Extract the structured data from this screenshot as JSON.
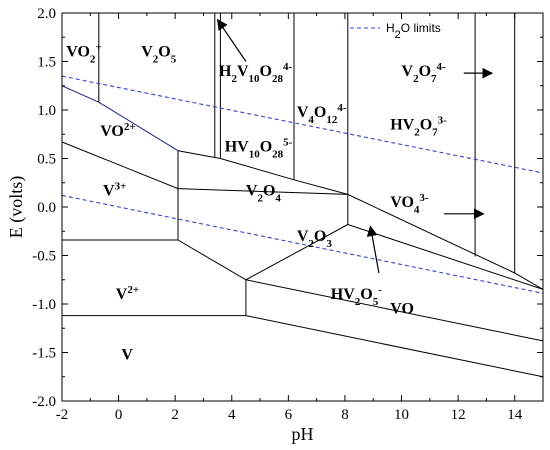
{
  "chart_data": {
    "type": "line",
    "title": "",
    "xlabel": "pH",
    "ylabel": "E (volts)",
    "xlim": [
      -2,
      15
    ],
    "ylim": [
      -2.0,
      2.0
    ],
    "xticks": [
      "-2",
      "0",
      "2",
      "4",
      "6",
      "8",
      "10",
      "12",
      "14"
    ],
    "yticks": [
      "-2.0",
      "-1.5",
      "-1.0",
      "-0.5",
      "0.0",
      "0.5",
      "1.0",
      "1.5",
      "2.0"
    ],
    "grid": false,
    "legend": {
      "position": "top-right",
      "entries": [
        {
          "base": "H",
          "sub": "2",
          "rest": "O limits"
        }
      ]
    },
    "series": [
      {
        "name": "H2O limits",
        "style": "dashed",
        "color": "#3344cc",
        "x": [
          -2,
          15
        ],
        "y": [
          1.35,
          0.35
        ]
      },
      {
        "name": "H2O limits",
        "style": "dashed",
        "color": "#3344cc",
        "x": [
          -2,
          15
        ],
        "y": [
          0.12,
          -0.89
        ]
      }
    ],
    "boundaries": [
      {
        "x": [
          -2,
          -0.7,
          2.1
        ],
        "y": [
          1.25,
          1.08,
          0.58
        ],
        "color": "#1a237e"
      },
      {
        "x": [
          2.1,
          3.6,
          6.2,
          8.1,
          8.1,
          14.0,
          15.0
        ],
        "y": [
          0.58,
          0.5,
          0.28,
          0.13,
          0.13,
          -0.68,
          -0.85
        ],
        "color": "#000000"
      },
      {
        "x": [
          -2,
          2.1,
          2.1
        ],
        "y": [
          0.67,
          0.19,
          0.58
        ],
        "color": "#000000"
      },
      {
        "x": [
          2.1,
          8.1,
          8.1,
          15.0
        ],
        "y": [
          0.19,
          0.13,
          -0.18,
          -0.85
        ],
        "color": "#000000"
      },
      {
        "x": [
          -2,
          2.1,
          2.1
        ],
        "y": [
          -0.34,
          -0.34,
          0.19
        ],
        "color": "#000000"
      },
      {
        "x": [
          2.1,
          4.5,
          8.1
        ],
        "y": [
          -0.34,
          -0.75,
          -0.18
        ],
        "color": "#000000"
      },
      {
        "x": [
          -2,
          4.5,
          4.5
        ],
        "y": [
          -1.12,
          -1.12,
          -0.75
        ],
        "color": "#000000"
      },
      {
        "x": [
          4.5,
          15.0
        ],
        "y": [
          -0.75,
          -1.38
        ],
        "color": "#000000"
      },
      {
        "x": [
          4.5,
          15.0
        ],
        "y": [
          -1.12,
          -1.75
        ],
        "color": "#000000"
      },
      {
        "x": [
          -0.7,
          -0.7
        ],
        "y": [
          2.0,
          1.08
        ],
        "color": "#000000"
      },
      {
        "x": [
          3.4,
          3.4
        ],
        "y": [
          2.0,
          0.51
        ],
        "color": "#000000"
      },
      {
        "x": [
          3.6,
          3.6
        ],
        "y": [
          2.0,
          0.5
        ],
        "color": "#000000"
      },
      {
        "x": [
          6.2,
          6.2
        ],
        "y": [
          2.0,
          0.28
        ],
        "color": "#000000"
      },
      {
        "x": [
          8.1,
          8.1
        ],
        "y": [
          2.0,
          0.13
        ],
        "color": "#000000"
      },
      {
        "x": [
          12.6,
          12.6
        ],
        "y": [
          2.0,
          -0.51
        ],
        "color": "#000000"
      },
      {
        "x": [
          14.0,
          14.0
        ],
        "y": [
          2.0,
          -0.68
        ],
        "color": "#000000"
      }
    ],
    "annotations": [
      {
        "name": "vo2-plus",
        "x": -1.85,
        "y": 1.55,
        "parts": [
          {
            "t": "VO"
          },
          {
            "t": "2",
            "s": "sub"
          },
          {
            "t": "+",
            "s": "sup"
          }
        ]
      },
      {
        "name": "v2o5",
        "x": 0.8,
        "y": 1.55,
        "parts": [
          {
            "t": "V"
          },
          {
            "t": "2",
            "s": "sub"
          },
          {
            "t": "O"
          },
          {
            "t": "5",
            "s": "sub"
          }
        ]
      },
      {
        "name": "h2v10o28",
        "x": 3.55,
        "y": 1.35,
        "parts": [
          {
            "t": "H"
          },
          {
            "t": "2",
            "s": "sub"
          },
          {
            "t": "V"
          },
          {
            "t": "10",
            "s": "sub"
          },
          {
            "t": "O"
          },
          {
            "t": "28",
            "s": "sub"
          },
          {
            "t": "4-",
            "s": "sup"
          }
        ]
      },
      {
        "name": "hv10o28",
        "x": 3.75,
        "y": 0.57,
        "parts": [
          {
            "t": "HV"
          },
          {
            "t": "10",
            "s": "sub"
          },
          {
            "t": "O"
          },
          {
            "t": "28",
            "s": "sub"
          },
          {
            "t": "5-",
            "s": "sup"
          }
        ]
      },
      {
        "name": "v4o12",
        "x": 6.3,
        "y": 0.93,
        "parts": [
          {
            "t": "V"
          },
          {
            "t": "4",
            "s": "sub"
          },
          {
            "t": "O"
          },
          {
            "t": "12",
            "s": "sub"
          },
          {
            "t": "4-",
            "s": "sup"
          }
        ]
      },
      {
        "name": "v2o7",
        "x": 10.0,
        "y": 1.35,
        "parts": [
          {
            "t": "V"
          },
          {
            "t": "2",
            "s": "sub"
          },
          {
            "t": "O"
          },
          {
            "t": "7",
            "s": "sub"
          },
          {
            "t": "4-",
            "s": "sup"
          }
        ]
      },
      {
        "name": "hv2o7",
        "x": 9.6,
        "y": 0.8,
        "parts": [
          {
            "t": "HV"
          },
          {
            "t": "2",
            "s": "sub"
          },
          {
            "t": "O"
          },
          {
            "t": "7",
            "s": "sub"
          },
          {
            "t": "3-",
            "s": "sup"
          }
        ]
      },
      {
        "name": "vo2-plus-plus",
        "x": -0.65,
        "y": 0.73,
        "parts": [
          {
            "t": "VO"
          },
          {
            "t": "2+",
            "s": "sup"
          }
        ]
      },
      {
        "name": "v3-plus",
        "x": -0.55,
        "y": 0.12,
        "parts": [
          {
            "t": "V"
          },
          {
            "t": "3+",
            "s": "sup"
          }
        ]
      },
      {
        "name": "v2o4",
        "x": 4.5,
        "y": 0.12,
        "parts": [
          {
            "t": "V"
          },
          {
            "t": "2",
            "s": "sub"
          },
          {
            "t": "O"
          },
          {
            "t": "4",
            "s": "sub"
          }
        ]
      },
      {
        "name": "vo4",
        "x": 9.6,
        "y": 0.0,
        "parts": [
          {
            "t": "VO"
          },
          {
            "t": "4",
            "s": "sub"
          },
          {
            "t": "3-",
            "s": "sup"
          }
        ]
      },
      {
        "name": "v2o3",
        "x": 6.3,
        "y": -0.35,
        "parts": [
          {
            "t": "V"
          },
          {
            "t": "2",
            "s": "sub"
          },
          {
            "t": "O"
          },
          {
            "t": "3",
            "s": "sub"
          }
        ]
      },
      {
        "name": "v2-plus",
        "x": -0.1,
        "y": -0.95,
        "parts": [
          {
            "t": "V"
          },
          {
            "t": "2+",
            "s": "sup"
          }
        ]
      },
      {
        "name": "hv2o5",
        "x": 7.5,
        "y": -0.95,
        "parts": [
          {
            "t": "HV"
          },
          {
            "t": "2",
            "s": "sub"
          },
          {
            "t": "O"
          },
          {
            "t": "5",
            "s": "sub"
          },
          {
            "t": "-",
            "s": "sup"
          }
        ]
      },
      {
        "name": "vo",
        "x": 9.6,
        "y": -1.1,
        "parts": [
          {
            "t": "VO"
          }
        ]
      },
      {
        "name": "v",
        "x": 0.1,
        "y": -1.57,
        "parts": [
          {
            "t": "V"
          }
        ]
      }
    ],
    "arrows": [
      {
        "name": "arrow-h2v10o28",
        "from": [
          4.5,
          1.5
        ],
        "to": [
          3.5,
          1.93
        ]
      },
      {
        "name": "arrow-v2o7",
        "from": [
          12.2,
          1.38
        ],
        "to": [
          13.2,
          1.38
        ]
      },
      {
        "name": "arrow-vo4",
        "from": [
          11.5,
          -0.07
        ],
        "to": [
          12.9,
          -0.07
        ]
      },
      {
        "name": "arrow-hv2o5",
        "from": [
          9.2,
          -0.68
        ],
        "to": [
          8.9,
          -0.2
        ]
      }
    ]
  }
}
